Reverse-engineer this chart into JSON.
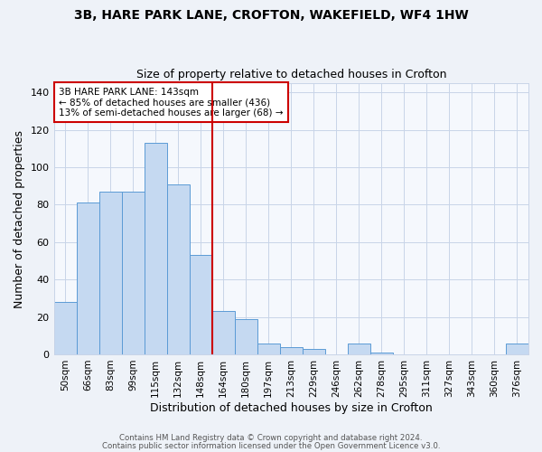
{
  "title1": "3B, HARE PARK LANE, CROFTON, WAKEFIELD, WF4 1HW",
  "title2": "Size of property relative to detached houses in Crofton",
  "xlabel": "Distribution of detached houses by size in Crofton",
  "ylabel": "Number of detached properties",
  "bar_labels": [
    "50sqm",
    "66sqm",
    "83sqm",
    "99sqm",
    "115sqm",
    "132sqm",
    "148sqm",
    "164sqm",
    "180sqm",
    "197sqm",
    "213sqm",
    "229sqm",
    "246sqm",
    "262sqm",
    "278sqm",
    "295sqm",
    "311sqm",
    "327sqm",
    "343sqm",
    "360sqm",
    "376sqm"
  ],
  "bar_values": [
    28,
    81,
    87,
    87,
    113,
    91,
    53,
    23,
    19,
    6,
    4,
    3,
    0,
    6,
    1,
    0,
    0,
    0,
    0,
    0,
    6
  ],
  "bar_color": "#c5d9f1",
  "bar_edge_color": "#5b9bd5",
  "vline_x_idx": 6,
  "vline_color": "#cc0000",
  "annotation_text": "3B HARE PARK LANE: 143sqm\n← 85% of detached houses are smaller (436)\n13% of semi-detached houses are larger (68) →",
  "annotation_box_color": "#ffffff",
  "annotation_box_edge_color": "#cc0000",
  "ylim": [
    0,
    145
  ],
  "yticks": [
    0,
    20,
    40,
    60,
    80,
    100,
    120,
    140
  ],
  "footer1": "Contains HM Land Registry data © Crown copyright and database right 2024.",
  "footer2": "Contains public sector information licensed under the Open Government Licence v3.0.",
  "bg_color": "#eef2f8",
  "plot_bg_color": "#f5f8fd",
  "grid_color": "#c8d4e8"
}
